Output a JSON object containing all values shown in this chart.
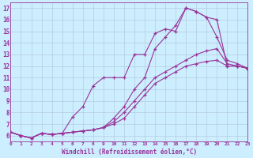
{
  "xlabel": "Windchill (Refroidissement éolien,°C)",
  "background_color": "#cceeff",
  "grid_color": "#b0c4d8",
  "line_color": "#993399",
  "xlim": [
    0,
    23
  ],
  "ylim": [
    5.5,
    17.5
  ],
  "xticks": [
    0,
    1,
    2,
    3,
    4,
    5,
    6,
    7,
    8,
    9,
    10,
    11,
    12,
    13,
    14,
    15,
    16,
    17,
    18,
    19,
    20,
    21,
    22,
    23
  ],
  "yticks": [
    6,
    7,
    8,
    9,
    10,
    11,
    12,
    13,
    14,
    15,
    16,
    17
  ],
  "series": [
    [
      6.3,
      6.0,
      5.8,
      6.2,
      6.1,
      6.2,
      6.3,
      6.4,
      6.5,
      6.7,
      7.0,
      7.5,
      8.5,
      9.5,
      10.5,
      11.0,
      11.5,
      12.0,
      12.2,
      12.4,
      12.5,
      12.0,
      12.0,
      11.8
    ],
    [
      6.3,
      6.0,
      5.8,
      6.2,
      6.1,
      6.2,
      6.3,
      6.4,
      6.5,
      6.7,
      7.2,
      8.0,
      9.0,
      10.0,
      11.0,
      11.5,
      12.0,
      12.5,
      13.0,
      13.3,
      13.5,
      12.2,
      12.0,
      11.8
    ],
    [
      6.3,
      6.0,
      5.8,
      6.2,
      6.1,
      6.2,
      7.6,
      8.5,
      10.3,
      11.0,
      11.0,
      11.0,
      13.0,
      13.0,
      14.8,
      15.2,
      15.0,
      17.0,
      16.7,
      16.2,
      16.0,
      12.0,
      12.0,
      11.8
    ],
    [
      6.3,
      6.0,
      5.8,
      6.2,
      6.1,
      6.2,
      6.3,
      6.4,
      6.5,
      6.7,
      7.5,
      8.5,
      10.0,
      11.0,
      13.5,
      14.5,
      15.5,
      17.0,
      16.7,
      16.2,
      14.5,
      12.5,
      12.2,
      11.8
    ]
  ]
}
